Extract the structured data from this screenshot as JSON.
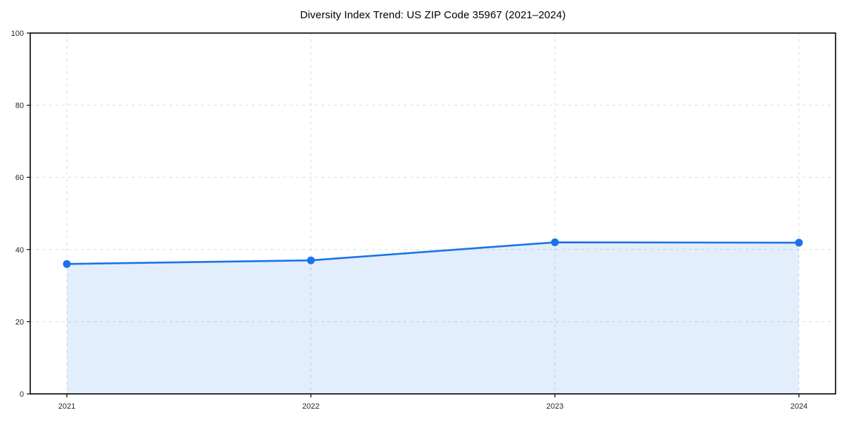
{
  "figure": {
    "background": "#ffffff",
    "axes_border_color": "#000000",
    "grid_color": "#d9d9d9",
    "tick_color": "#000000",
    "tick_label_color": "#262626",
    "title_color": "#000000"
  },
  "chart_data": {
    "type": "area",
    "title": "Diversity Index Trend: US ZIP Code 35967 (2021–2024)",
    "categories": [
      "2021",
      "2022",
      "2023",
      "2024"
    ],
    "series": [
      {
        "name": "Diversity Index",
        "values": [
          36,
          37,
          42,
          41.9
        ],
        "color": "#1a73e8",
        "fill_color": "rgba(26,115,232,0.12)",
        "marker": "circle"
      }
    ],
    "xlabel": "",
    "ylabel": "",
    "ylim": [
      0,
      100
    ],
    "yticks": [
      0,
      20,
      40,
      60,
      80,
      100
    ],
    "grid": true,
    "grid_style": "dashed",
    "legend_position": "none"
  }
}
